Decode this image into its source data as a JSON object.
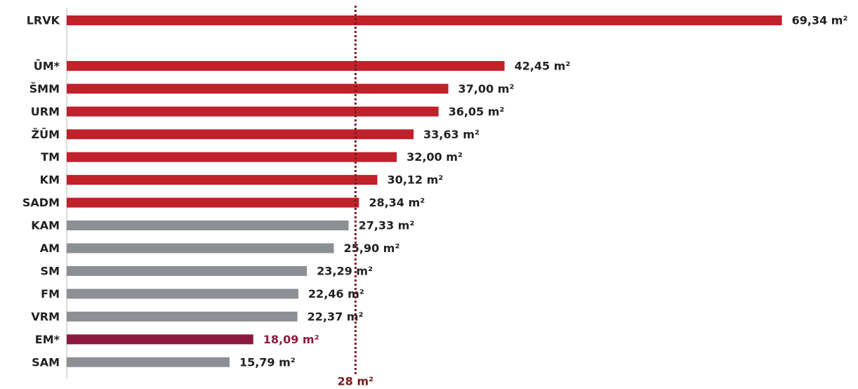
{
  "chart_data": {
    "type": "bar",
    "orientation": "horizontal",
    "categories": [
      "LRVK",
      null,
      "ŪM*",
      "ŠMM",
      "URM",
      "ŽŪM",
      "TM",
      "KM",
      "SADM",
      "KAM",
      "AM",
      "SM",
      "FM",
      "VRM",
      "EM*",
      "SAM"
    ],
    "values": [
      69.34,
      null,
      42.45,
      37.0,
      36.05,
      33.63,
      32.0,
      30.12,
      28.34,
      27.33,
      25.9,
      23.29,
      22.46,
      22.37,
      18.09,
      15.79
    ],
    "value_labels": [
      "69,34 m²",
      null,
      "42,45 m²",
      "37,00 m²",
      "36,05 m²",
      "33,63 m²",
      "32,00 m²",
      "30,12 m²",
      "28,34 m²",
      "27,33 m²",
      "25,90 m²",
      "23,29 m²",
      "22,46 m²",
      "22,37 m²",
      "18,09 m²",
      "15,79 m²"
    ],
    "colors": [
      "#c0212b",
      null,
      "#c0212b",
      "#c0212b",
      "#c0212b",
      "#c0212b",
      "#c0212b",
      "#c0212b",
      "#c0212b",
      "#8c8f93",
      "#8c8f93",
      "#8c8f93",
      "#8c8f93",
      "#8c8f93",
      "#8b1a40",
      "#8c8f93"
    ],
    "label_colors": [
      "#222222",
      null,
      "#222222",
      "#222222",
      "#222222",
      "#222222",
      "#222222",
      "#222222",
      "#222222",
      "#222222",
      "#222222",
      "#222222",
      "#222222",
      "#222222",
      "#8b1a40",
      "#222222"
    ],
    "reference_line": {
      "value": 28,
      "label": "28 m²",
      "color": "#7b1a1a"
    }
  }
}
